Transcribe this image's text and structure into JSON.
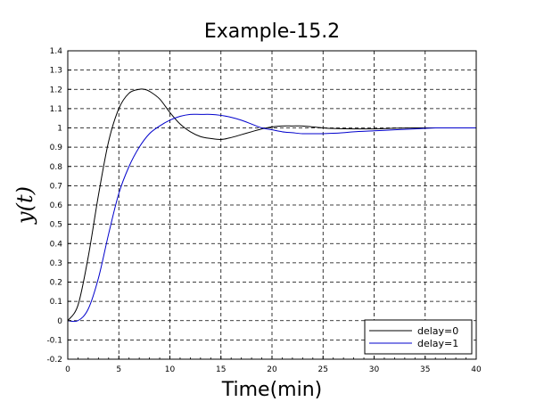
{
  "chart_data": {
    "type": "line",
    "title": "Example-15.2",
    "xlabel": "Time(min)",
    "ylabel": "y(t)",
    "xlim": [
      0,
      40
    ],
    "ylim": [
      -0.2,
      1.4
    ],
    "xticks": [
      0,
      5,
      10,
      15,
      20,
      25,
      30,
      35,
      40
    ],
    "yticks": [
      -0.2,
      -0.1,
      0,
      0.1,
      0.2,
      0.3,
      0.4,
      0.5,
      0.6,
      0.7,
      0.8,
      0.9,
      1,
      1.1,
      1.2,
      1.3,
      1.4
    ],
    "grid": true,
    "legend_position": "bottom-right",
    "series": [
      {
        "name": "delay=0",
        "color": "#000000",
        "x": [
          0,
          1,
          2,
          3,
          4,
          5,
          6,
          7,
          7.5,
          8,
          9,
          10,
          11,
          12,
          13,
          14,
          15,
          16,
          17,
          18,
          19,
          20,
          21,
          22,
          23,
          24,
          25,
          26,
          28,
          30,
          32,
          34,
          36
        ],
        "y": [
          0,
          0.08,
          0.33,
          0.65,
          0.93,
          1.1,
          1.18,
          1.2,
          1.2,
          1.19,
          1.15,
          1.08,
          1.02,
          0.98,
          0.955,
          0.945,
          0.94,
          0.95,
          0.965,
          0.98,
          0.995,
          1.005,
          1.01,
          1.01,
          1.01,
          1.005,
          1.0,
          0.997,
          0.995,
          0.995,
          0.998,
          1.0,
          1.0
        ]
      },
      {
        "name": "delay=1",
        "color": "#0000cc",
        "x": [
          0,
          1,
          2,
          3,
          4,
          5,
          6,
          7,
          8,
          9,
          10,
          11,
          12,
          13,
          14,
          15,
          16,
          17,
          18,
          19,
          20,
          21,
          22,
          23,
          24,
          25,
          26,
          27,
          28,
          30,
          32,
          34,
          36
        ],
        "y": [
          0,
          0,
          0.06,
          0.22,
          0.45,
          0.66,
          0.8,
          0.9,
          0.97,
          1.01,
          1.04,
          1.06,
          1.07,
          1.07,
          1.07,
          1.065,
          1.055,
          1.04,
          1.02,
          1.0,
          0.99,
          0.98,
          0.975,
          0.97,
          0.97,
          0.97,
          0.972,
          0.975,
          0.98,
          0.985,
          0.99,
          0.995,
          1.0
        ]
      }
    ]
  }
}
